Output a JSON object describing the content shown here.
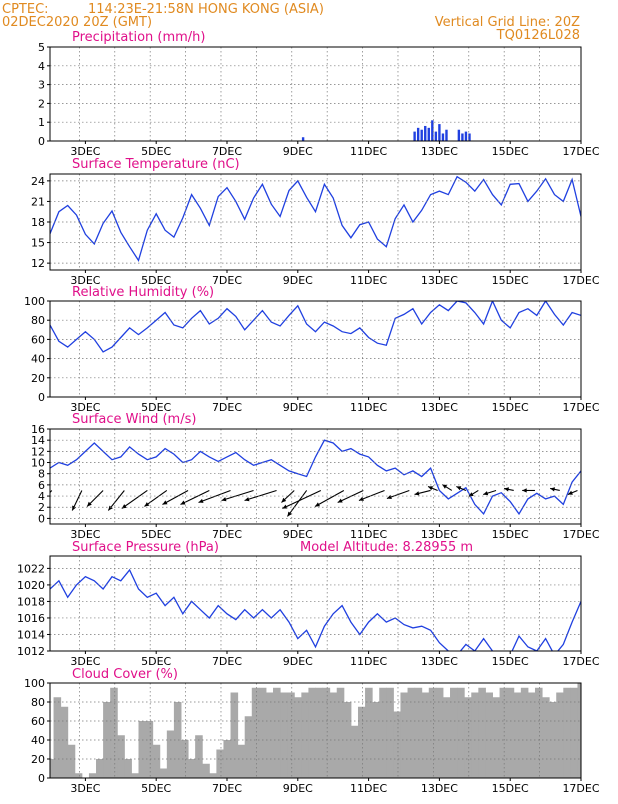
{
  "header": {
    "source": "CPTEC:",
    "location": "114:23E-21:58N   HONG KONG (ASIA)",
    "datetime": "02DEC2020 20Z (GMT)",
    "grid_note": "Vertical Grid Line: 20Z",
    "model_code": "TQ0126L028"
  },
  "x_ticks": [
    "3DEC",
    "5DEC",
    "7DEC",
    "9DEC",
    "11DEC",
    "13DEC",
    "15DEC",
    "17DEC"
  ],
  "colors": {
    "line": "#2040e0",
    "bar_precip": "#2040e0",
    "cloud": "#a9a9a9",
    "title": "#e0108a",
    "header": "#e08a20"
  },
  "chart_data": [
    {
      "type": "bar",
      "title": "Precipitation (mm/h)",
      "ylim": [
        0,
        5
      ],
      "yticks": [
        0,
        1,
        2,
        3,
        4,
        5
      ],
      "x": [
        9.15,
        12.3,
        12.4,
        12.5,
        12.6,
        12.7,
        12.8,
        12.9,
        13.0,
        13.1,
        13.2,
        13.55,
        13.65,
        13.75,
        13.85
      ],
      "values": [
        0.2,
        0.5,
        0.7,
        0.6,
        0.8,
        0.7,
        1.1,
        0.5,
        0.9,
        0.4,
        0.6,
        0.6,
        0.4,
        0.5,
        0.4
      ]
    },
    {
      "type": "line",
      "title": "Surface Temperature (nC)",
      "ylim": [
        11,
        25
      ],
      "yticks": [
        12,
        15,
        18,
        21,
        24
      ],
      "x": [
        2.0,
        2.25,
        2.5,
        2.75,
        3.0,
        3.25,
        3.5,
        3.75,
        4.0,
        4.25,
        4.5,
        4.75,
        5.0,
        5.25,
        5.5,
        5.75,
        6.0,
        6.25,
        6.5,
        6.75,
        7.0,
        7.25,
        7.5,
        7.75,
        8.0,
        8.25,
        8.5,
        8.75,
        9.0,
        9.25,
        9.5,
        9.75,
        10.0,
        10.25,
        10.5,
        10.75,
        11.0,
        11.25,
        11.5,
        11.75,
        12.0,
        12.25,
        12.5,
        12.75,
        13.0,
        13.25,
        13.5,
        13.75,
        14.0,
        14.25,
        14.5,
        14.75,
        15.0,
        15.25,
        15.5,
        15.75,
        16.0,
        16.25,
        16.5,
        16.75,
        17.0
      ],
      "values": [
        16.3,
        19.5,
        20.4,
        19.0,
        16.2,
        14.8,
        17.8,
        19.6,
        16.5,
        14.4,
        12.4,
        16.8,
        19.2,
        16.8,
        15.8,
        18.6,
        22.0,
        20.0,
        17.5,
        21.7,
        23.0,
        21.0,
        18.4,
        21.5,
        23.5,
        20.6,
        18.8,
        22.6,
        24.0,
        21.6,
        19.5,
        23.5,
        21.5,
        17.5,
        15.7,
        17.6,
        18.0,
        15.5,
        14.4,
        18.5,
        20.5,
        18.0,
        19.7,
        22.0,
        22.5,
        22.0,
        24.6,
        23.8,
        22.5,
        24.2,
        22.0,
        20.5,
        23.5,
        23.6,
        21.0,
        22.5,
        24.3,
        22.0,
        21.0,
        24.2,
        18.8
      ]
    },
    {
      "type": "line",
      "title": "Relative Humidity (%)",
      "ylim": [
        0,
        100
      ],
      "yticks": [
        0,
        20,
        40,
        60,
        80,
        100
      ],
      "x": [
        2.0,
        2.25,
        2.5,
        2.75,
        3.0,
        3.25,
        3.5,
        3.75,
        4.0,
        4.25,
        4.5,
        4.75,
        5.0,
        5.25,
        5.5,
        5.75,
        6.0,
        6.25,
        6.5,
        6.75,
        7.0,
        7.25,
        7.5,
        7.75,
        8.0,
        8.25,
        8.5,
        8.75,
        9.0,
        9.25,
        9.5,
        9.75,
        10.0,
        10.25,
        10.5,
        10.75,
        11.0,
        11.25,
        11.5,
        11.75,
        12.0,
        12.25,
        12.5,
        12.75,
        13.0,
        13.25,
        13.5,
        13.75,
        14.0,
        14.25,
        14.5,
        14.75,
        15.0,
        15.25,
        15.5,
        15.75,
        16.0,
        16.25,
        16.5,
        16.75,
        17.0
      ],
      "values": [
        75,
        58,
        52,
        60,
        68,
        60,
        47,
        52,
        62,
        72,
        65,
        72,
        80,
        88,
        75,
        72,
        82,
        90,
        76,
        82,
        92,
        84,
        70,
        80,
        90,
        78,
        74,
        85,
        95,
        76,
        68,
        78,
        74,
        68,
        66,
        72,
        62,
        56,
        54,
        82,
        86,
        92,
        76,
        88,
        96,
        90,
        100,
        98,
        88,
        76,
        100,
        80,
        72,
        88,
        92,
        85,
        100,
        86,
        75,
        88,
        85
      ]
    },
    {
      "type": "line",
      "title": "Surface Wind (m/s)",
      "ylim": [
        -1,
        16
      ],
      "yticks": [
        0,
        2,
        4,
        6,
        8,
        10,
        12,
        14,
        16
      ],
      "x": [
        2.0,
        2.25,
        2.5,
        2.75,
        3.0,
        3.25,
        3.5,
        3.75,
        4.0,
        4.25,
        4.5,
        4.75,
        5.0,
        5.25,
        5.5,
        5.75,
        6.0,
        6.25,
        6.5,
        6.75,
        7.0,
        7.25,
        7.5,
        7.75,
        8.0,
        8.25,
        8.5,
        8.75,
        9.0,
        9.25,
        9.5,
        9.75,
        10.0,
        10.25,
        10.5,
        10.75,
        11.0,
        11.25,
        11.5,
        11.75,
        12.0,
        12.25,
        12.5,
        12.75,
        13.0,
        13.25,
        13.5,
        13.75,
        14.0,
        14.25,
        14.5,
        14.75,
        15.0,
        15.25,
        15.5,
        15.75,
        16.0,
        16.25,
        16.5,
        16.75,
        17.0
      ],
      "values": [
        9,
        10,
        9.5,
        10.5,
        12,
        13.5,
        12,
        10.5,
        11,
        12.8,
        11.5,
        10.5,
        11,
        12.5,
        11.5,
        10,
        10.5,
        12,
        11,
        10.2,
        11,
        11.8,
        10.5,
        9.5,
        10,
        10.5,
        9.5,
        8.5,
        8,
        7.5,
        11,
        14,
        13.5,
        12,
        12.5,
        11.5,
        11,
        9.5,
        8.5,
        9,
        7.8,
        8.5,
        7.5,
        9,
        5,
        3.5,
        4.5,
        5.5,
        2.5,
        0.8,
        4,
        4.6,
        3,
        0.8,
        3.5,
        4.5,
        3.5,
        4,
        2.5,
        6.5,
        8.5
      ],
      "barbs": [
        {
          "x": 2.05,
          "u": -4,
          "v": -7
        },
        {
          "x": 2.9,
          "u": -3,
          "v": -10
        },
        {
          "x": 3.5,
          "u": -5,
          "v": -8
        },
        {
          "x": 4.1,
          "u": -5,
          "v": -10
        },
        {
          "x": 4.75,
          "u": -8,
          "v": -9
        },
        {
          "x": 5.3,
          "u": -7,
          "v": -8
        },
        {
          "x": 5.9,
          "u": -8,
          "v": -7
        },
        {
          "x": 6.5,
          "u": -9,
          "v": -7
        },
        {
          "x": 7.1,
          "u": -10,
          "v": -6
        },
        {
          "x": 7.75,
          "u": -10,
          "v": -5
        },
        {
          "x": 8.4,
          "u": -10,
          "v": -5
        },
        {
          "x": 8.9,
          "u": -4,
          "v": -6
        },
        {
          "x": 9.25,
          "u": -6,
          "v": -13
        },
        {
          "x": 9.65,
          "u": -12,
          "v": -9
        },
        {
          "x": 10.3,
          "u": -9,
          "v": -8
        },
        {
          "x": 10.85,
          "u": -8,
          "v": -6
        },
        {
          "x": 11.45,
          "u": -8,
          "v": -5
        },
        {
          "x": 12.15,
          "u": -7,
          "v": -4
        },
        {
          "x": 12.75,
          "u": -5,
          "v": -2
        },
        {
          "x": 12.95,
          "u": -3,
          "v": 2
        },
        {
          "x": 13.35,
          "u": -3,
          "v": 3
        },
        {
          "x": 13.75,
          "u": -3,
          "v": 2
        },
        {
          "x": 14.1,
          "u": -3,
          "v": -3
        },
        {
          "x": 14.6,
          "u": -4,
          "v": -2
        },
        {
          "x": 15.1,
          "u": -3,
          "v": 1
        },
        {
          "x": 15.7,
          "u": -4,
          "v": 0
        },
        {
          "x": 16.4,
          "u": -3,
          "v": 1
        },
        {
          "x": 16.9,
          "u": -3,
          "v": -2
        }
      ]
    },
    {
      "type": "line",
      "title": "Surface Pressure (hPa)",
      "annotation": "Model Altitude: 8.28955 m",
      "ylim": [
        1012,
        1023.5
      ],
      "yticks": [
        1012,
        1014,
        1016,
        1018,
        1020,
        1022
      ],
      "x": [
        2.0,
        2.25,
        2.5,
        2.75,
        3.0,
        3.25,
        3.5,
        3.75,
        4.0,
        4.25,
        4.5,
        4.75,
        5.0,
        5.25,
        5.5,
        5.75,
        6.0,
        6.25,
        6.5,
        6.75,
        7.0,
        7.25,
        7.5,
        7.75,
        8.0,
        8.25,
        8.5,
        8.75,
        9.0,
        9.25,
        9.5,
        9.75,
        10.0,
        10.25,
        10.5,
        10.75,
        11.0,
        11.25,
        11.5,
        11.75,
        12.0,
        12.25,
        12.5,
        12.75,
        13.0,
        13.25,
        13.5,
        13.75,
        14.0,
        14.25,
        14.5,
        14.75,
        15.0,
        15.25,
        15.5,
        15.75,
        16.0,
        16.25,
        16.5,
        16.75,
        17.0
      ],
      "values": [
        1019.5,
        1020.5,
        1018.5,
        1020,
        1021,
        1020.5,
        1019.5,
        1021,
        1020.5,
        1021.8,
        1019.5,
        1018.5,
        1019,
        1017.5,
        1018.5,
        1016.5,
        1018,
        1017,
        1016,
        1017.5,
        1016.5,
        1015.8,
        1017,
        1016,
        1017,
        1016,
        1017,
        1015.5,
        1013.5,
        1014.5,
        1012.5,
        1015,
        1016.5,
        1017.5,
        1015.5,
        1014,
        1015.5,
        1016.5,
        1015.5,
        1016,
        1015.2,
        1014.8,
        1015,
        1014.5,
        1013,
        1012,
        1011.5,
        1012.8,
        1012,
        1013.5,
        1012,
        1011.8,
        1011.5,
        1013.8,
        1012.5,
        1012,
        1013.5,
        1011.5,
        1012.8,
        1015.5,
        1018
      ]
    },
    {
      "type": "bar",
      "title": "Cloud Cover (%)",
      "ylim": [
        0,
        100
      ],
      "yticks": [
        0,
        20,
        40,
        60,
        80,
        100
      ],
      "x": [
        2.0,
        2.2,
        2.4,
        2.6,
        2.8,
        3.0,
        3.2,
        3.4,
        3.6,
        3.8,
        4.0,
        4.2,
        4.4,
        4.6,
        4.8,
        5.0,
        5.2,
        5.4,
        5.6,
        5.8,
        6.0,
        6.2,
        6.4,
        6.6,
        6.8,
        7.0,
        7.2,
        7.4,
        7.6,
        7.8,
        8.0,
        8.2,
        8.4,
        8.6,
        8.8,
        9.0,
        9.2,
        9.4,
        9.6,
        9.8,
        10.0,
        10.2,
        10.4,
        10.6,
        10.8,
        11.0,
        11.2,
        11.4,
        11.6,
        11.8,
        12.0,
        12.2,
        12.4,
        12.6,
        12.8,
        13.0,
        13.2,
        13.4,
        13.6,
        13.8,
        14.0,
        14.2,
        14.4,
        14.6,
        14.8,
        15.0,
        15.2,
        15.4,
        15.6,
        15.8,
        16.0,
        16.2,
        16.4,
        16.6,
        16.8,
        17.0
      ],
      "values": [
        20,
        85,
        75,
        35,
        5,
        0,
        5,
        20,
        80,
        95,
        45,
        20,
        5,
        60,
        60,
        35,
        10,
        50,
        80,
        40,
        20,
        45,
        15,
        5,
        30,
        40,
        90,
        35,
        65,
        95,
        95,
        90,
        95,
        90,
        90,
        85,
        90,
        95,
        95,
        95,
        90,
        95,
        80,
        55,
        75,
        95,
        80,
        95,
        95,
        70,
        90,
        95,
        95,
        90,
        95,
        95,
        85,
        95,
        95,
        85,
        90,
        95,
        90,
        85,
        95,
        95,
        90,
        95,
        90,
        95,
        85,
        80,
        90,
        95,
        95,
        100
      ]
    }
  ]
}
